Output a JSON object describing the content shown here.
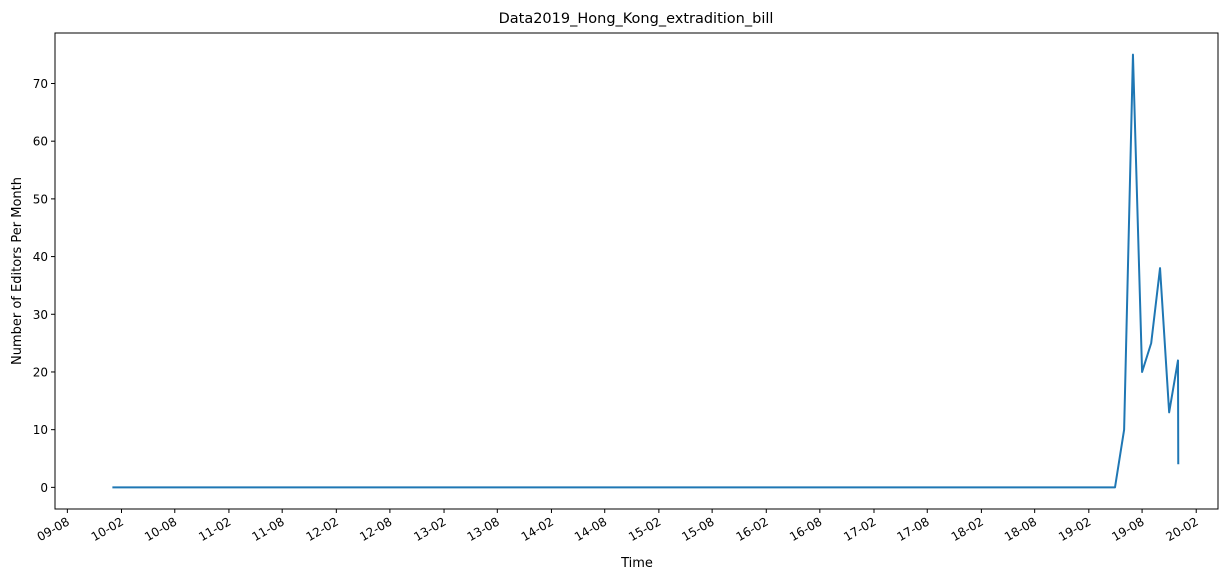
{
  "chart_data": {
    "type": "line",
    "title": "Data2019_Hong_Kong_extradition_bill",
    "xlabel": "Time",
    "ylabel": "Number of Editors Per Month",
    "xlim": [
      "2009-06-20",
      "2020-04-15"
    ],
    "ylim": [
      -3.75,
      78.75
    ],
    "grid": false,
    "legend": "none",
    "x_ticks": [
      {
        "date": "2009-08-01",
        "label": "09-08"
      },
      {
        "date": "2010-02-01",
        "label": "10-02"
      },
      {
        "date": "2010-08-01",
        "label": "10-08"
      },
      {
        "date": "2011-02-01",
        "label": "11-02"
      },
      {
        "date": "2011-08-01",
        "label": "11-08"
      },
      {
        "date": "2012-02-01",
        "label": "12-02"
      },
      {
        "date": "2012-08-01",
        "label": "12-08"
      },
      {
        "date": "2013-02-01",
        "label": "13-02"
      },
      {
        "date": "2013-08-01",
        "label": "13-08"
      },
      {
        "date": "2014-02-01",
        "label": "14-02"
      },
      {
        "date": "2014-08-01",
        "label": "14-08"
      },
      {
        "date": "2015-02-01",
        "label": "15-02"
      },
      {
        "date": "2015-08-01",
        "label": "15-08"
      },
      {
        "date": "2016-02-01",
        "label": "16-02"
      },
      {
        "date": "2016-08-01",
        "label": "16-08"
      },
      {
        "date": "2017-02-01",
        "label": "17-02"
      },
      {
        "date": "2017-08-01",
        "label": "17-08"
      },
      {
        "date": "2018-02-01",
        "label": "18-02"
      },
      {
        "date": "2018-08-01",
        "label": "18-08"
      },
      {
        "date": "2019-02-01",
        "label": "19-02"
      },
      {
        "date": "2019-08-01",
        "label": "19-08"
      },
      {
        "date": "2020-02-01",
        "label": "20-02"
      }
    ],
    "y_ticks": [
      0,
      10,
      20,
      30,
      40,
      50,
      60,
      70
    ],
    "series": [
      {
        "color": "#1f77b4",
        "x": [
          "2010-01-01",
          "2019-05-01",
          "2019-06-01",
          "2019-07-01",
          "2019-08-01",
          "2019-09-01",
          "2019-10-01",
          "2019-11-01",
          "2019-12-01",
          "2019-12-02"
        ],
        "y": [
          0,
          0,
          10,
          75,
          20,
          25,
          38,
          13,
          22,
          4
        ]
      }
    ]
  }
}
